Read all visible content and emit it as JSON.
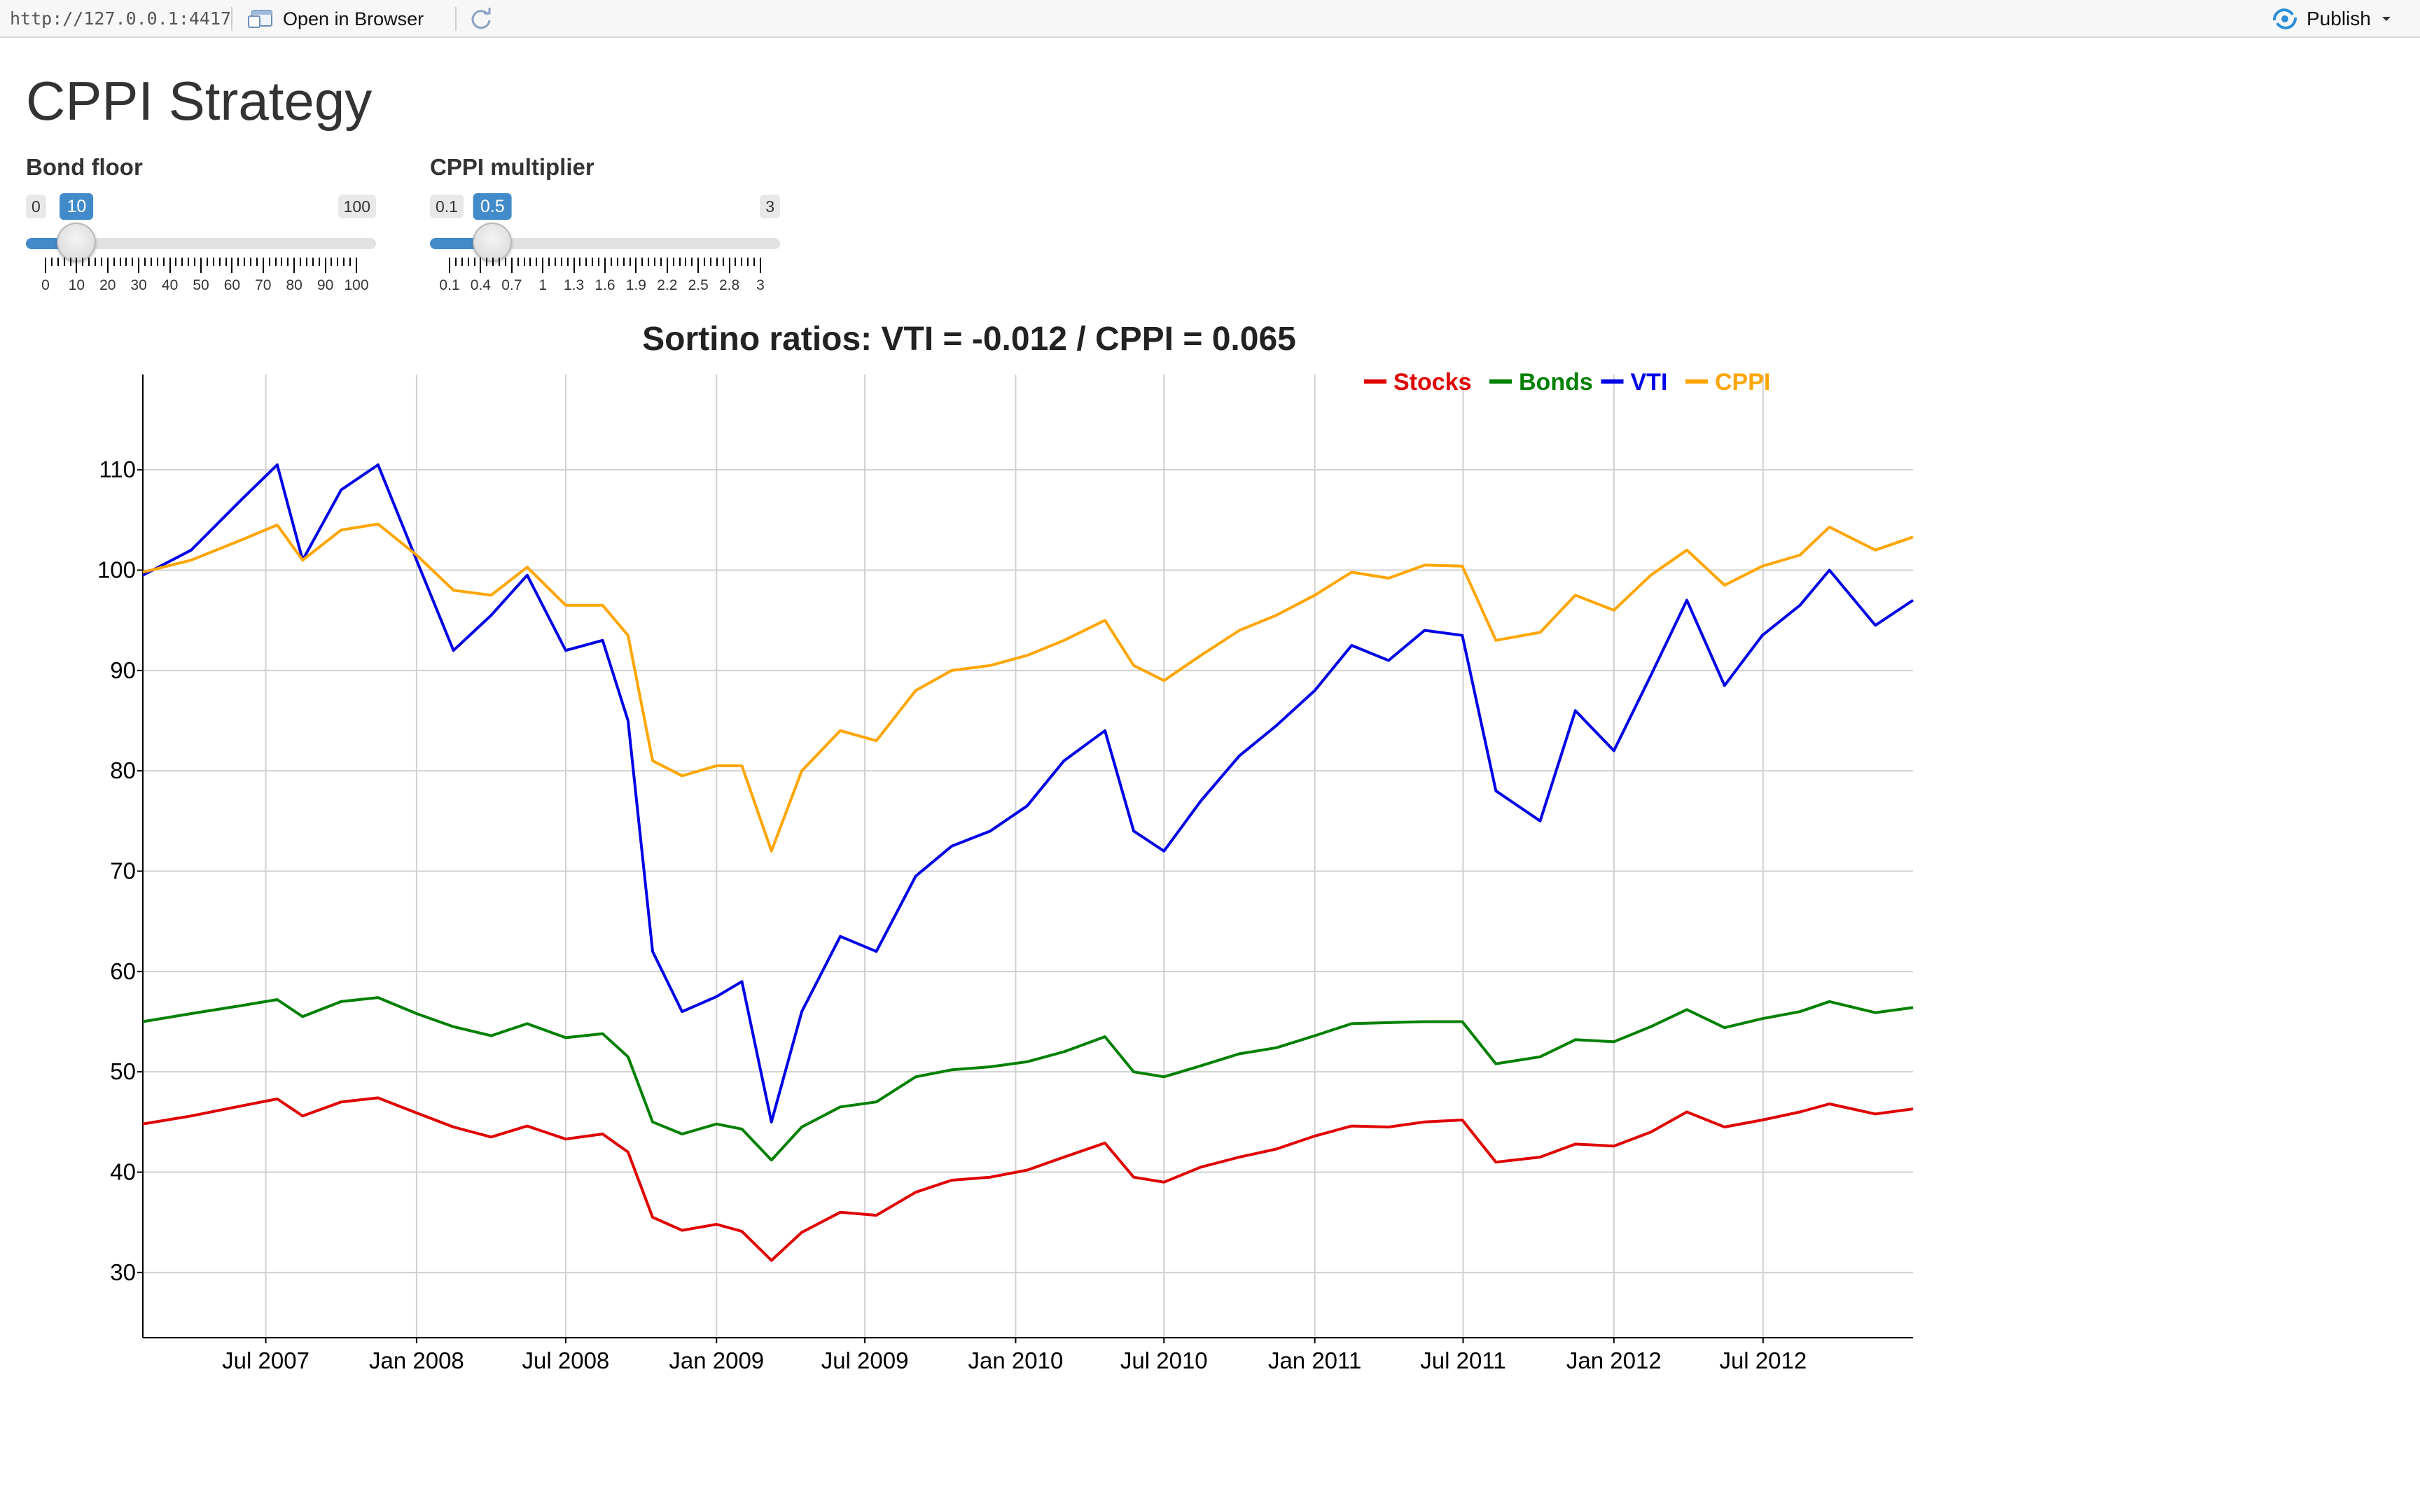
{
  "toolbar": {
    "url": "http://127.0.0.1:4417",
    "open_in_browser": "Open in Browser",
    "publish": "Publish"
  },
  "page": {
    "title": "CPPI Strategy"
  },
  "sliders": {
    "bond_floor": {
      "label": "Bond floor",
      "min": 0,
      "max": 100,
      "value": 10,
      "min_label": "0",
      "max_label": "100",
      "value_label": "10",
      "tick_labels": [
        "0",
        "10",
        "20",
        "30",
        "40",
        "50",
        "60",
        "70",
        "80",
        "90",
        "100"
      ]
    },
    "cppi_multiplier": {
      "label": "CPPI multiplier",
      "min": 0.1,
      "max": 3,
      "value": 0.5,
      "min_label": "0.1",
      "max_label": "3",
      "value_label": "0.5",
      "tick_labels": [
        "0.1",
        "0.4",
        "0.7",
        "1",
        "1.3",
        "1.6",
        "1.9",
        "2.2",
        "2.5",
        "2.8",
        "3"
      ]
    }
  },
  "chart_data": {
    "type": "line",
    "title": "Sortino ratios: VTI = -0.012 / CPPI = 0.065",
    "xlabel": "",
    "ylabel": "",
    "x_range": [
      "2007-02-01",
      "2012-12-31"
    ],
    "ylim": [
      23.5,
      119.5
    ],
    "y_ticks": [
      30,
      40,
      50,
      60,
      70,
      80,
      90,
      100,
      110
    ],
    "x_ticks": [
      {
        "date": "2007-07-01",
        "label": "Jul 2007"
      },
      {
        "date": "2008-01-01",
        "label": "Jan 2008"
      },
      {
        "date": "2008-07-01",
        "label": "Jul 2008"
      },
      {
        "date": "2009-01-01",
        "label": "Jan 2009"
      },
      {
        "date": "2009-07-01",
        "label": "Jul 2009"
      },
      {
        "date": "2010-01-01",
        "label": "Jan 2010"
      },
      {
        "date": "2010-07-01",
        "label": "Jul 2010"
      },
      {
        "date": "2011-01-01",
        "label": "Jan 2011"
      },
      {
        "date": "2011-07-01",
        "label": "Jul 2011"
      },
      {
        "date": "2012-01-01",
        "label": "Jan 2012"
      },
      {
        "date": "2012-07-01",
        "label": "Jul 2012"
      }
    ],
    "grid": true,
    "legend_position": "top-right",
    "x": [
      "2007-02-01",
      "2007-04-01",
      "2007-06-01",
      "2007-07-15",
      "2007-08-15",
      "2007-10-01",
      "2007-11-15",
      "2008-01-01",
      "2008-02-15",
      "2008-04-01",
      "2008-05-15",
      "2008-07-01",
      "2008-08-15",
      "2008-09-15",
      "2008-10-15",
      "2008-11-20",
      "2009-01-01",
      "2009-02-01",
      "2009-03-09",
      "2009-04-15",
      "2009-06-01",
      "2009-07-15",
      "2009-09-01",
      "2009-10-15",
      "2009-12-01",
      "2010-01-15",
      "2010-03-01",
      "2010-04-20",
      "2010-05-25",
      "2010-07-01",
      "2010-08-15",
      "2010-10-01",
      "2010-11-15",
      "2011-01-01",
      "2011-02-15",
      "2011-04-01",
      "2011-05-15",
      "2011-06-30",
      "2011-08-10",
      "2011-10-03",
      "2011-11-15",
      "2012-01-01",
      "2012-02-15",
      "2012-03-30",
      "2012-05-15",
      "2012-06-30",
      "2012-08-15",
      "2012-09-20",
      "2012-11-15",
      "2012-12-31"
    ],
    "series": [
      {
        "name": "Stocks",
        "color": "#e00000",
        "values": [
          44.8,
          45.6,
          46.6,
          47.3,
          45.6,
          47.0,
          47.4,
          45.9,
          44.5,
          43.5,
          44.6,
          43.3,
          43.8,
          42.0,
          35.5,
          34.2,
          34.8,
          34.1,
          31.2,
          34.0,
          36.0,
          35.7,
          38.0,
          39.2,
          39.5,
          40.2,
          41.5,
          42.9,
          39.5,
          39.0,
          40.5,
          41.5,
          42.3,
          43.6,
          44.6,
          44.5,
          45.0,
          45.2,
          41.0,
          41.5,
          42.8,
          42.6,
          44.0,
          46.0,
          44.5,
          45.2,
          46.0,
          46.8,
          45.8,
          46.3
        ]
      },
      {
        "name": "Bonds",
        "color": "#008000",
        "values": [
          55.0,
          55.8,
          56.6,
          57.2,
          55.5,
          57.0,
          57.4,
          55.8,
          54.5,
          53.6,
          54.8,
          53.4,
          53.8,
          51.5,
          45.0,
          43.8,
          44.8,
          44.3,
          41.2,
          44.5,
          46.5,
          47.0,
          49.5,
          50.2,
          50.5,
          51.0,
          52.0,
          53.5,
          50.0,
          49.5,
          50.6,
          51.8,
          52.4,
          53.6,
          54.8,
          54.9,
          55.0,
          55.0,
          50.8,
          51.5,
          53.2,
          53.0,
          54.5,
          56.2,
          54.4,
          55.3,
          56.0,
          57.0,
          55.9,
          56.4
        ]
      },
      {
        "name": "VTI",
        "color": "#0000e6",
        "values": [
          99.5,
          102.0,
          107.0,
          110.5,
          101.0,
          108.0,
          110.5,
          101.0,
          92.0,
          95.5,
          99.5,
          92.0,
          93.0,
          85.0,
          62.0,
          56.0,
          57.5,
          59.0,
          45.0,
          56.0,
          63.5,
          62.0,
          69.5,
          72.5,
          74.0,
          76.5,
          81.0,
          84.0,
          74.0,
          72.0,
          77.0,
          81.5,
          84.5,
          88.0,
          92.5,
          91.0,
          94.0,
          93.5,
          78.0,
          75.0,
          86.0,
          82.0,
          89.5,
          97.0,
          88.5,
          93.5,
          96.5,
          100.0,
          94.5,
          97.0
        ]
      },
      {
        "name": "CPPI",
        "color": "#ffa500",
        "values": [
          99.8,
          101.0,
          103.0,
          104.5,
          101.0,
          104.0,
          104.6,
          101.5,
          98.0,
          97.5,
          100.3,
          96.5,
          96.5,
          93.5,
          81.0,
          79.5,
          80.5,
          80.5,
          72.0,
          80.0,
          84.0,
          83.0,
          88.0,
          90.0,
          90.5,
          91.5,
          93.0,
          95.0,
          90.5,
          89.0,
          91.5,
          94.0,
          95.5,
          97.5,
          99.8,
          99.2,
          100.5,
          100.4,
          93.0,
          93.8,
          97.5,
          96.0,
          99.5,
          102.0,
          98.5,
          100.4,
          101.5,
          104.3,
          102.0,
          103.3
        ]
      }
    ]
  }
}
